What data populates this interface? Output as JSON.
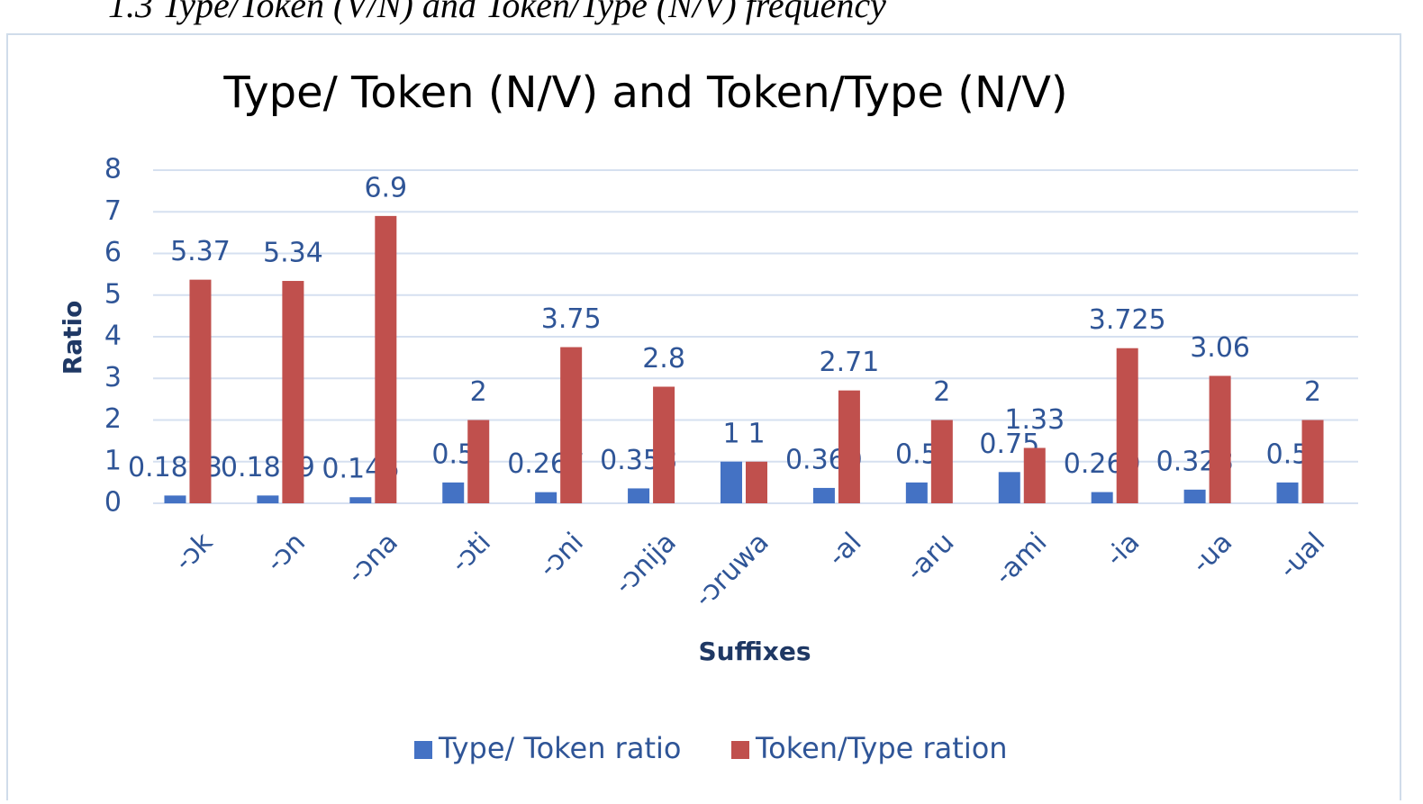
{
  "caption": "1.3 Type/Token (V/N) and Token/Type (N/V) frequency",
  "chart_data": {
    "type": "bar",
    "title": "Type/ Token (N/V) and Token/Type (N/V)",
    "x_label": "Suffixes",
    "y_label": "Ratio",
    "categories": [
      "-ɔk",
      "-ɔn",
      "-ɔna",
      "-ɔti",
      "-ɔni",
      "-ɔnija",
      "-ɔruwa",
      "-al",
      "-aru",
      "-ami",
      "-ia",
      "-ua",
      "-ual"
    ],
    "series": [
      {
        "name": "Type/ Token ratio",
        "color": "#4472c4",
        "values": [
          0.1863,
          0.1869,
          0.146,
          0.5,
          0.267,
          0.358,
          1,
          0.369,
          0.5,
          0.75,
          0.269,
          0.328,
          0.5
        ]
      },
      {
        "name": "Token/Type ration",
        "color": "#c0504d",
        "values": [
          5.37,
          5.34,
          6.9,
          2,
          3.75,
          2.8,
          1,
          2.71,
          2,
          1.33,
          3.725,
          3.06,
          2
        ]
      }
    ],
    "ylim": [
      0,
      8
    ],
    "yticks": [
      0,
      1,
      2,
      3,
      4,
      5,
      6,
      7,
      8
    ],
    "grid": true,
    "legend": "bottom"
  }
}
